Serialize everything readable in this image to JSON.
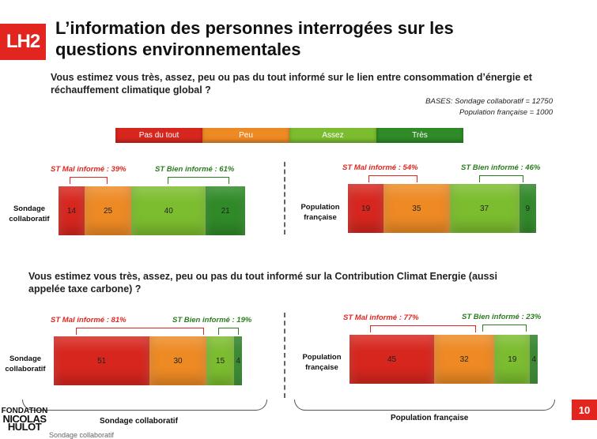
{
  "logo": "LH2",
  "title": "L’information des personnes interrogées sur les questions environnementales",
  "question1": "Vous estimez vous très, assez, peu ou pas du tout informé sur le lien entre consommation d’énergie et réchauffement climatique global ?",
  "question2": "Vous estimez vous très, assez, peu ou pas du tout informé sur la Contribution Climat Energie (aussi appelée taxe carbone) ?",
  "bases": {
    "line1": "BASES: Sondage collaboratif = 12750",
    "line2": "Population française = 1000"
  },
  "colors": {
    "pas_du_tout": "#d7261e",
    "peu": "#ee8a24",
    "assez": "#7cbd2f",
    "tres": "#2f8a27",
    "accent": "#e2261f"
  },
  "chart_data": [
    {
      "type": "bar",
      "stacked": true,
      "orientation": "horizontal",
      "question": "consommation d’énergie et réchauffement climatique global",
      "row_label": "Sondage collaboratif",
      "categories": [
        "Pas du tout",
        "Peu",
        "Assez",
        "Très"
      ],
      "values": [
        14,
        25,
        40,
        21
      ],
      "st_mal": "ST Mal informé : 39%",
      "st_bien": "ST Bien informé : 61%"
    },
    {
      "type": "bar",
      "stacked": true,
      "orientation": "horizontal",
      "question": "consommation d’énergie et réchauffement climatique global",
      "row_label": "Population française",
      "categories": [
        "Pas du tout",
        "Peu",
        "Assez",
        "Très"
      ],
      "values": [
        19,
        35,
        37,
        9
      ],
      "st_mal": "ST Mal informé : 54%",
      "st_bien": "ST Bien informé : 46%"
    },
    {
      "type": "bar",
      "stacked": true,
      "orientation": "horizontal",
      "question": "Contribution Climat Energie",
      "row_label": "Sondage collaboratif",
      "categories": [
        "Pas du tout",
        "Peu",
        "Assez",
        "Très"
      ],
      "values": [
        51,
        30,
        15,
        4
      ],
      "st_mal": "ST Mal informé : 81%",
      "st_bien": "ST Bien informé : 19%"
    },
    {
      "type": "bar",
      "stacked": true,
      "orientation": "horizontal",
      "question": "Contribution Climat Energie",
      "row_label": "Population française",
      "categories": [
        "Pas du tout",
        "Peu",
        "Assez",
        "Très"
      ],
      "values": [
        45,
        32,
        19,
        4
      ],
      "st_mal": "ST Mal informé : 77%",
      "st_bien": "ST Bien informé : 23%"
    }
  ],
  "legend": [
    "Pas du tout",
    "Peu",
    "Assez",
    "Très"
  ],
  "row_labels": {
    "sondage_1": "Sondage",
    "sondage_2": "collaboratif",
    "population_1": "Population",
    "population_2": "française"
  },
  "bottom": {
    "left": "Sondage collaboratif",
    "right": "Population française"
  },
  "fondation": {
    "line1": "FONDATION",
    "line2": "NICOLAS",
    "line3": "HULOT"
  },
  "footnote": "Sondage collaboratif",
  "page_number": "10"
}
